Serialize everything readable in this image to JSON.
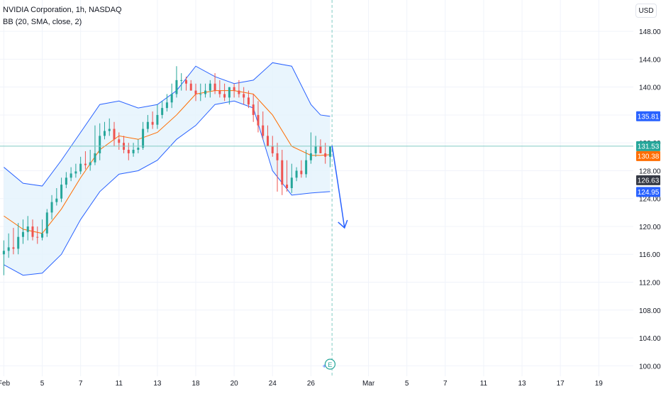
{
  "header": {
    "symbol_title": "NVIDIA Corporation, 1h, NASDAQ",
    "indicator_title": "BB (20, SMA, close, 2)",
    "currency_button": "USD"
  },
  "colors": {
    "candle_up": "#26a69a",
    "candle_down": "#ef5350",
    "bb_basis": "#ff6d00",
    "bb_band": "#2962ff",
    "bb_fill": "#e3f2fd",
    "crosshair": "#80cbc4",
    "projection_arrow": "#2962ff",
    "grid": "#f0f3fa"
  },
  "chart_data": {
    "type": "candlestick",
    "y_axis": {
      "ticks": [
        "148.00",
        "144.00",
        "140.00",
        "136.00",
        "132.00",
        "128.00",
        "124.00",
        "120.00",
        "116.00",
        "112.00",
        "108.00",
        "104.00",
        "100.00"
      ],
      "tick_values": [
        148,
        144,
        140,
        136,
        132,
        128,
        124,
        120,
        116,
        112,
        108,
        104,
        100
      ],
      "ylim": [
        98.5,
        152.5
      ]
    },
    "x_axis": {
      "ticks": [
        "Feb",
        "5",
        "7",
        "11",
        "13",
        "18",
        "20",
        "24",
        "26",
        "Mar",
        "5",
        "7",
        "11",
        "13",
        "17",
        "19"
      ],
      "tick_positions": [
        0,
        2,
        4,
        6,
        8,
        10,
        12,
        14,
        16,
        19,
        21,
        23,
        25,
        27,
        29,
        31
      ],
      "xlim": [
        -0.2,
        32.8
      ]
    },
    "price_labels": [
      {
        "value": 135.81,
        "text": "135.81",
        "style": "band-blue"
      },
      {
        "value": 131.53,
        "text": "131.53",
        "style": "last-price-green"
      },
      {
        "value": 130.38,
        "text": "130.38",
        "style": "basis-orange"
      },
      {
        "value": 126.63,
        "text": "126.63",
        "style": "crosshair-dark"
      },
      {
        "value": 124.95,
        "text": "124.95",
        "style": "band-blue"
      }
    ],
    "last_price": 131.53,
    "crosshair_x": 17.1,
    "bollinger": {
      "x": [
        0,
        1,
        2,
        3,
        4,
        5,
        6,
        7,
        8,
        9,
        10,
        11,
        12,
        13,
        14,
        15,
        16,
        16.5,
        17
      ],
      "upper": [
        128.5,
        126.2,
        125.8,
        129.5,
        133.5,
        137.5,
        138.0,
        137.0,
        137.5,
        139.5,
        143.0,
        141.5,
        140.5,
        141.0,
        143.5,
        143.0,
        137.5,
        136.0,
        135.8
      ],
      "basis": [
        121.5,
        119.6,
        119.0,
        122.5,
        127.0,
        131.0,
        133.0,
        132.5,
        133.5,
        136.0,
        139.0,
        139.5,
        139.5,
        139.0,
        136.0,
        131.5,
        130.2,
        130.2,
        130.3
      ],
      "lower": [
        114.5,
        113.0,
        113.3,
        116.0,
        121.0,
        125.0,
        127.5,
        128.0,
        129.5,
        132.5,
        134.5,
        137.5,
        138.0,
        137.0,
        128.0,
        124.5,
        124.8,
        124.9,
        125.0
      ]
    },
    "candles": {
      "x": [
        0.0,
        0.25,
        0.5,
        0.75,
        1.0,
        1.25,
        1.5,
        1.75,
        2.0,
        2.25,
        2.5,
        2.75,
        3.0,
        3.25,
        3.5,
        3.75,
        4.0,
        4.25,
        4.5,
        4.75,
        5.0,
        5.25,
        5.5,
        5.75,
        6.0,
        6.25,
        6.5,
        6.75,
        7.0,
        7.25,
        7.5,
        7.75,
        8.0,
        8.25,
        8.5,
        8.75,
        9.0,
        9.25,
        9.5,
        9.75,
        10.0,
        10.25,
        10.5,
        10.75,
        11.0,
        11.25,
        11.5,
        11.75,
        12.0,
        12.25,
        12.5,
        12.75,
        13.0,
        13.25,
        13.5,
        13.75,
        14.0,
        14.25,
        14.5,
        14.75,
        15.0,
        15.25,
        15.5,
        15.75,
        16.0,
        16.25,
        16.5,
        16.75,
        17.0
      ],
      "open": [
        116.0,
        116.5,
        117.0,
        116.8,
        118.5,
        119.2,
        120.0,
        118.5,
        118.4,
        119.0,
        122.0,
        123.5,
        124.0,
        126.0,
        127.0,
        127.6,
        127.9,
        129.0,
        128.8,
        129.2,
        130.5,
        133.0,
        133.7,
        134.0,
        132.5,
        132.0,
        131.0,
        130.5,
        131.0,
        131.3,
        134.0,
        135.0,
        134.6,
        136.0,
        137.0,
        137.8,
        139.0,
        141.0,
        141.0,
        140.5,
        139.5,
        139.0,
        139.0,
        139.5,
        140.5,
        139.5,
        139.0,
        138.5,
        140.0,
        139.5,
        139.0,
        138.5,
        137.5,
        136.0,
        134.5,
        133.0,
        131.5,
        130.5,
        129.5,
        126.0,
        125.5,
        127.0,
        128.0,
        127.5,
        129.5,
        130.5,
        131.5,
        130.5,
        130.0
      ],
      "high": [
        118.0,
        119.0,
        119.8,
        120.5,
        121.0,
        121.5,
        121.0,
        120.0,
        121.0,
        122.5,
        124.5,
        125.5,
        127.0,
        127.8,
        128.5,
        129.0,
        130.0,
        130.8,
        131.0,
        134.5,
        134.8,
        135.0,
        135.5,
        135.0,
        133.5,
        133.0,
        132.0,
        132.0,
        132.5,
        135.0,
        136.0,
        136.5,
        137.5,
        138.0,
        139.0,
        140.5,
        143.0,
        142.0,
        141.5,
        141.0,
        140.5,
        140.5,
        140.5,
        141.0,
        142.0,
        141.0,
        140.5,
        140.0,
        140.5,
        141.0,
        140.0,
        139.5,
        139.0,
        138.0,
        136.5,
        134.5,
        133.0,
        132.0,
        131.0,
        129.5,
        129.0,
        128.5,
        129.5,
        131.0,
        133.5,
        133.0,
        132.5,
        132.0,
        131.5
      ],
      "low": [
        113.0,
        115.5,
        116.0,
        116.0,
        117.5,
        118.0,
        118.0,
        117.5,
        118.0,
        118.5,
        121.0,
        123.0,
        123.5,
        125.5,
        126.5,
        127.0,
        127.5,
        128.2,
        128.0,
        128.8,
        129.5,
        132.5,
        133.0,
        131.5,
        131.0,
        130.5,
        129.5,
        130.0,
        130.5,
        131.0,
        133.5,
        134.0,
        134.0,
        135.5,
        136.5,
        137.0,
        138.5,
        139.5,
        139.5,
        139.5,
        138.0,
        138.0,
        138.5,
        138.5,
        139.0,
        138.5,
        138.0,
        137.5,
        138.5,
        138.5,
        137.5,
        137.0,
        135.0,
        133.5,
        132.5,
        131.5,
        130.0,
        125.0,
        124.5,
        125.0,
        124.8,
        126.5,
        127.0,
        127.0,
        129.0,
        130.0,
        130.5,
        129.0,
        128.5
      ],
      "close": [
        116.5,
        117.0,
        116.8,
        118.5,
        119.2,
        120.0,
        118.5,
        118.4,
        119.0,
        122.0,
        123.5,
        124.0,
        126.0,
        127.0,
        127.6,
        127.9,
        129.0,
        128.8,
        129.2,
        130.5,
        133.0,
        133.7,
        134.0,
        132.5,
        132.0,
        131.0,
        130.5,
        131.0,
        131.3,
        134.0,
        135.0,
        134.6,
        136.0,
        137.0,
        137.8,
        139.0,
        141.0,
        141.0,
        140.5,
        139.5,
        139.0,
        139.0,
        139.5,
        140.5,
        139.5,
        139.0,
        138.5,
        140.0,
        139.5,
        139.0,
        138.5,
        137.5,
        136.0,
        134.5,
        133.0,
        131.5,
        130.5,
        129.5,
        126.0,
        125.5,
        127.0,
        128.0,
        127.5,
        129.5,
        130.5,
        131.5,
        130.5,
        130.0,
        131.5
      ]
    },
    "projection": {
      "x": [
        17.1,
        17.45,
        17.75
      ],
      "y": [
        131.6,
        125.5,
        119.8
      ]
    },
    "event_marker": {
      "label": "E",
      "x": 17.0
    }
  }
}
